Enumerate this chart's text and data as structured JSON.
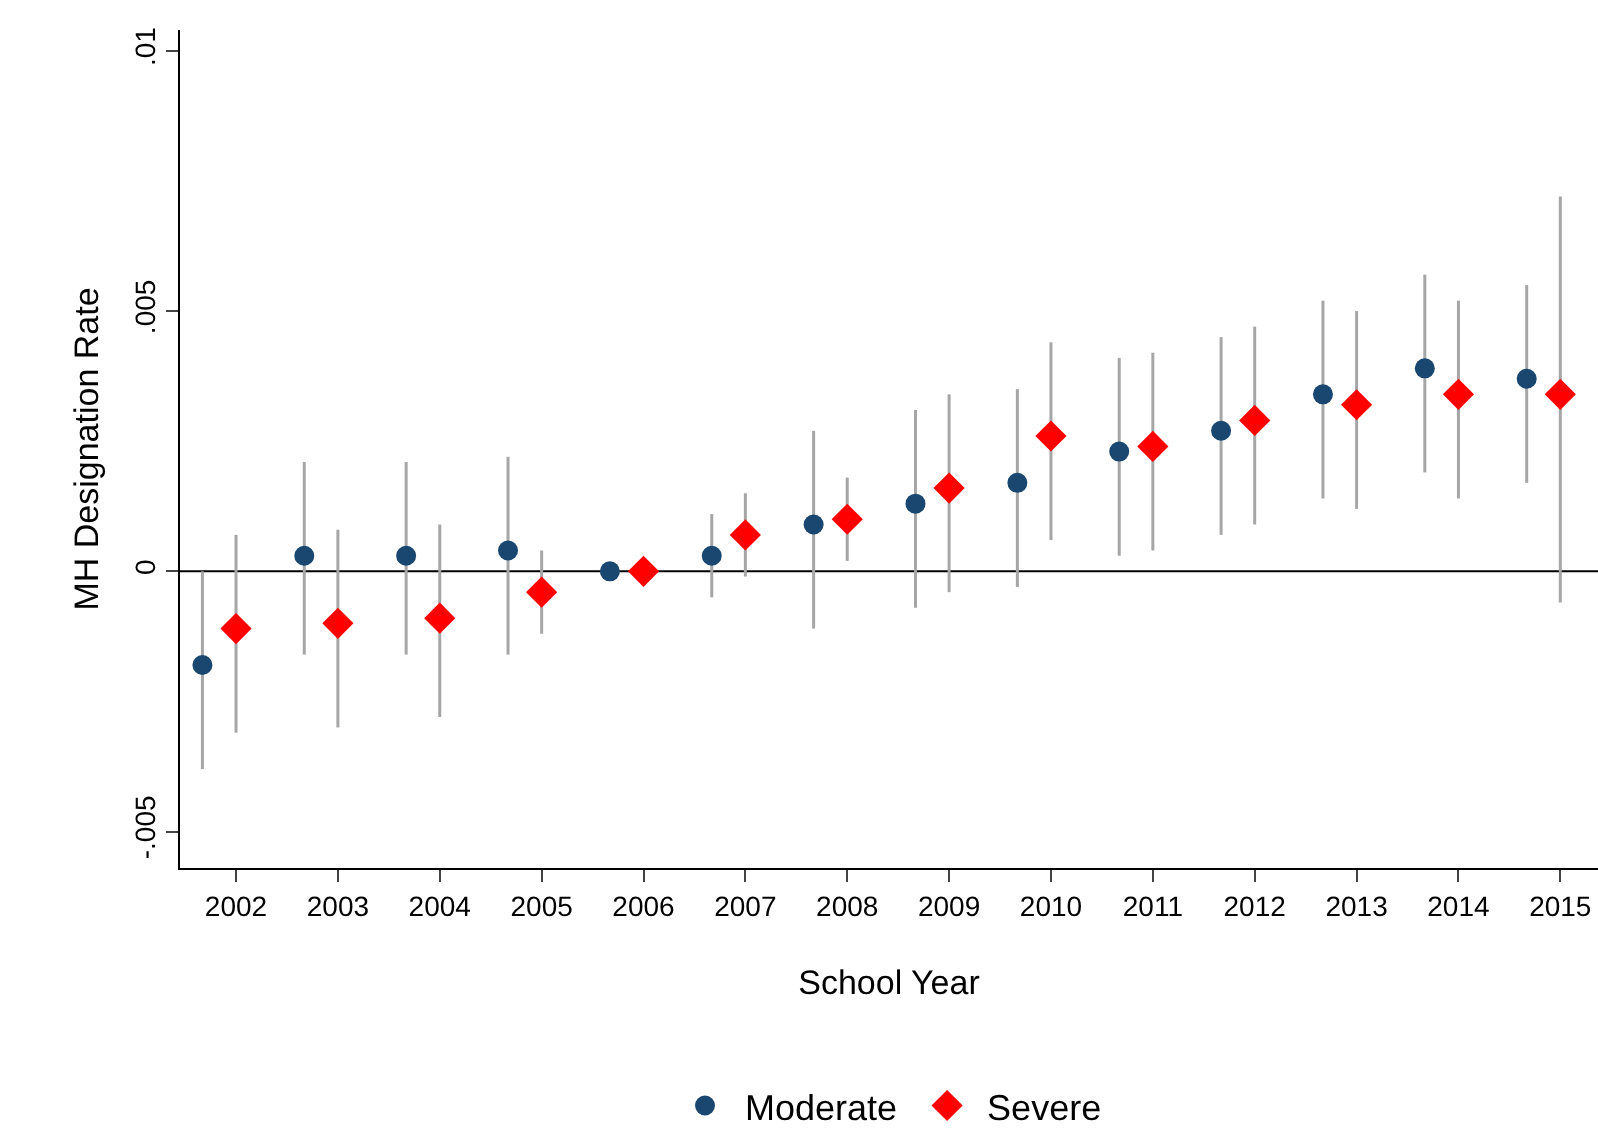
{
  "chart_data": {
    "type": "scatter",
    "xlabel": "School Year",
    "ylabel": "MH Designation Rate",
    "xlim": [
      2001.45,
      2015.37
    ],
    "xticks": [
      2002,
      2003,
      2004,
      2005,
      2006,
      2007,
      2008,
      2009,
      2010,
      2011,
      2012,
      2013,
      2014,
      2015
    ],
    "ylim": [
      -0.0057,
      0.0104
    ],
    "yticks": [
      {
        "value": -0.005,
        "label": "-.005"
      },
      {
        "value": 0,
        "label": "0"
      },
      {
        "value": 0.005,
        "label": ".005"
      },
      {
        "value": 0.01,
        "label": ".01"
      }
    ],
    "grid": false,
    "legend": "bottom",
    "ref_lines": [
      {
        "axis": "y",
        "value": 0,
        "color": "#000000",
        "line_style": "solid"
      }
    ],
    "series": [
      {
        "name": "Moderate",
        "color": "#1a476f",
        "marker": "circle",
        "x": [
          2001.67,
          2002.67,
          2003.67,
          2004.67,
          2005.67,
          2006.67,
          2007.67,
          2008.67,
          2009.67,
          2010.67,
          2011.67,
          2012.67,
          2013.67,
          2014.67
        ],
        "values": [
          -0.0018,
          0.0003,
          0.0003,
          0.0004,
          0,
          0.0003,
          0.0009,
          0.0013,
          0.0017,
          0.0023,
          0.0027,
          0.0034,
          0.0039,
          0.0037
        ],
        "errors": [
          [
            -0.0038,
            0.0
          ],
          [
            -0.0016,
            0.0021
          ],
          [
            -0.0016,
            0.0021
          ],
          [
            -0.0016,
            0.0022
          ],
          null,
          [
            -0.0005,
            0.0011
          ],
          [
            -0.0011,
            0.0027
          ],
          [
            -0.0007,
            0.0031
          ],
          [
            -0.0003,
            0.0035
          ],
          [
            0.0003,
            0.0041
          ],
          [
            0.0007,
            0.0045
          ],
          [
            0.0014,
            0.0052
          ],
          [
            0.0019,
            0.0057
          ],
          [
            0.0017,
            0.0055
          ]
        ]
      },
      {
        "name": "Severe",
        "color": "#ff0000",
        "marker": "diamond",
        "x": [
          2002,
          2003,
          2004,
          2005,
          2006,
          2007,
          2008,
          2009,
          2010,
          2011,
          2012,
          2013,
          2014,
          2015
        ],
        "values": [
          -0.0011,
          -0.001,
          -0.0009,
          -0.0004,
          0,
          0.0007,
          0.001,
          0.0016,
          0.0026,
          0.0024,
          0.0029,
          0.0032,
          0.0034,
          0.0034
        ],
        "errors": [
          [
            -0.0031,
            0.0007
          ],
          [
            -0.003,
            0.0008
          ],
          [
            -0.0028,
            0.0009
          ],
          [
            -0.0012,
            0.0004
          ],
          null,
          [
            -0.0001,
            0.0015
          ],
          [
            0.0002,
            0.0018
          ],
          [
            -0.0004,
            0.0034
          ],
          [
            0.0006,
            0.0044
          ],
          [
            0.0004,
            0.0042
          ],
          [
            0.0009,
            0.0047
          ],
          [
            0.0012,
            0.005
          ],
          [
            0.0014,
            0.0052
          ],
          [
            -0.0006,
            0.0072
          ]
        ]
      }
    ]
  }
}
